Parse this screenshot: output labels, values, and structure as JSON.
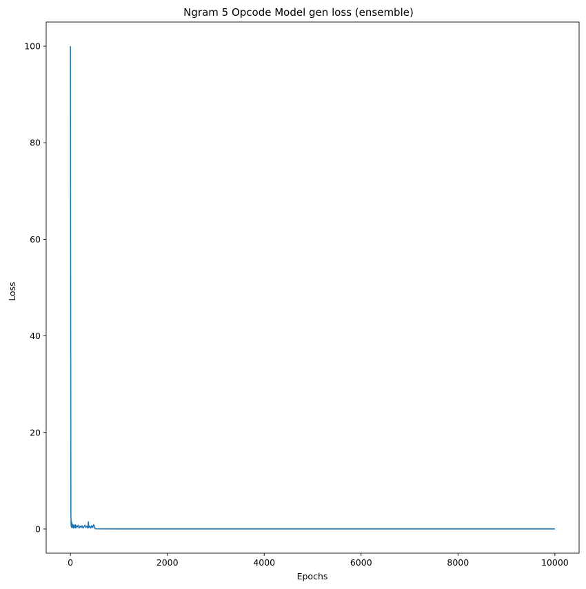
{
  "chart_data": {
    "type": "line",
    "title": "Ngram 5 Opcode Model gen loss (ensemble)",
    "xlabel": "Epochs",
    "ylabel": "Loss",
    "xlim": [
      -500,
      10500
    ],
    "ylim": [
      -5,
      105
    ],
    "xticks": [
      0,
      2000,
      4000,
      6000,
      8000,
      10000
    ],
    "yticks": [
      0,
      20,
      40,
      60,
      80,
      100
    ],
    "grid": false,
    "legend": "none",
    "series": [
      {
        "color": "#1f77b4",
        "x": [
          0,
          10,
          15,
          20,
          25,
          30,
          40,
          50,
          60,
          70,
          80,
          90,
          100,
          110,
          120,
          140,
          160,
          180,
          200,
          220,
          240,
          260,
          280,
          300,
          320,
          340,
          360,
          370,
          380,
          400,
          420,
          440,
          460,
          480,
          500,
          510,
          600,
          1000,
          2000,
          4000,
          6000,
          8000,
          10000
        ],
        "y": [
          100,
          3,
          0.6,
          1.6,
          0.3,
          1.2,
          0.4,
          0.9,
          0.2,
          0.8,
          0.5,
          0.3,
          0.9,
          0.2,
          0.7,
          0.4,
          0.8,
          0.2,
          0.6,
          0.3,
          0.7,
          0.2,
          0.5,
          0.8,
          0.3,
          0.6,
          0.2,
          1.5,
          0.3,
          0.6,
          0.2,
          0.7,
          0.3,
          0.9,
          0.4,
          0.05,
          0.03,
          0.02,
          0.02,
          0.02,
          0.02,
          0.02,
          0.02
        ]
      }
    ]
  }
}
